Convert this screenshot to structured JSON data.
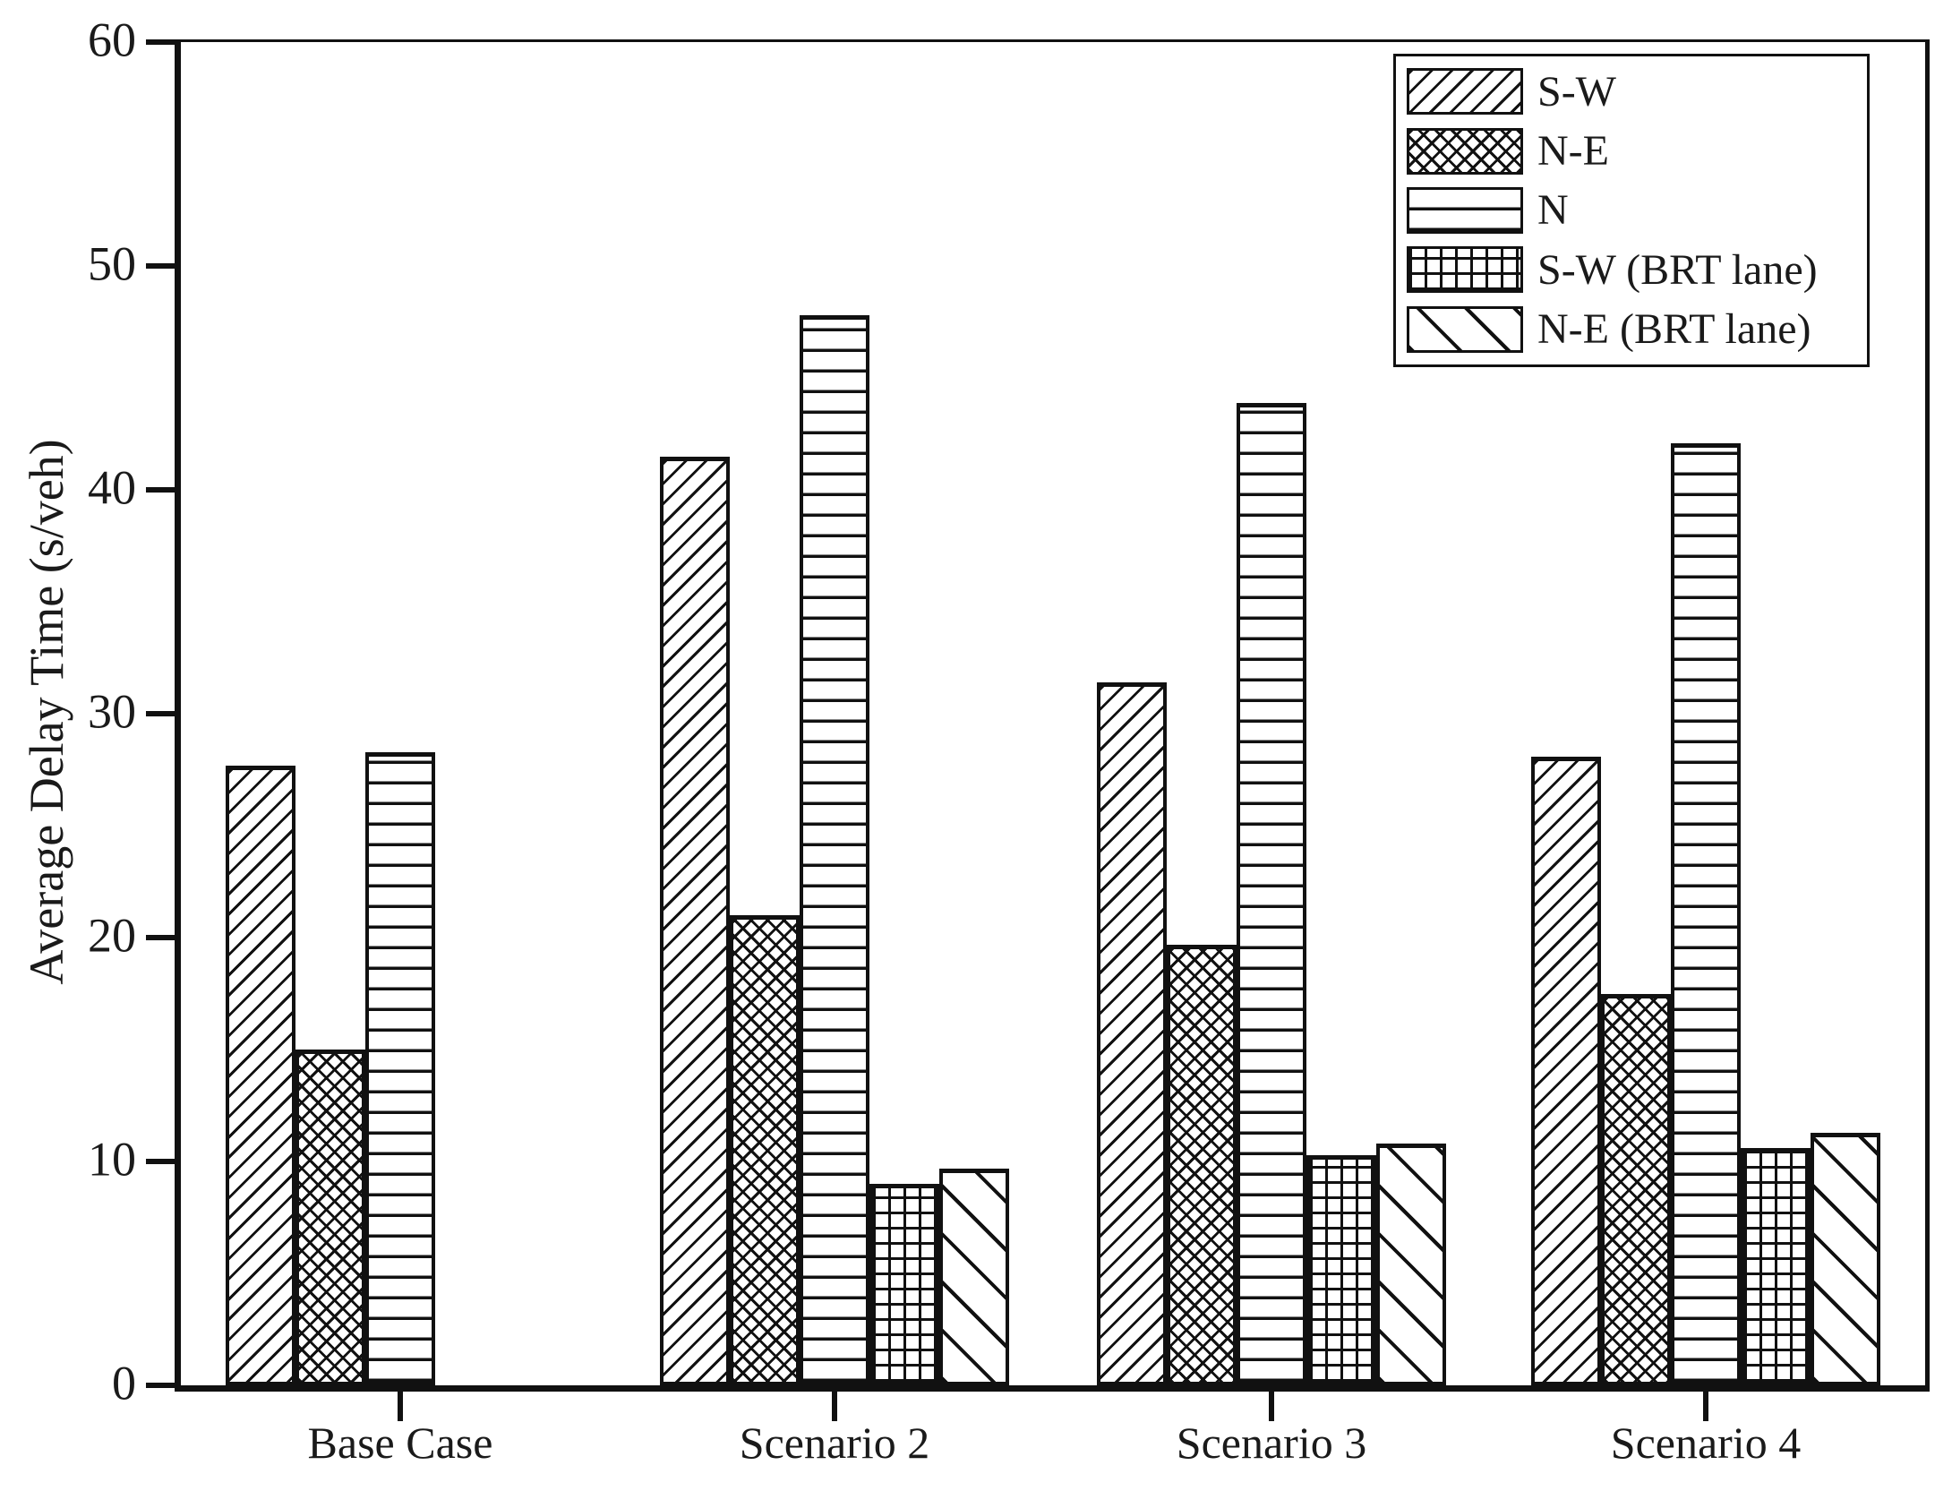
{
  "figure": {
    "background": "#ffffff",
    "line_color": "#111111",
    "text_color": "#1a1a1a"
  },
  "y_axis": {
    "title": "Average Delay Time (s/veh)"
  },
  "legend": {
    "items": [
      {
        "label": "S-W",
        "pattern": "diag-up"
      },
      {
        "label": "N-E",
        "pattern": "crosshatch"
      },
      {
        "label": "N",
        "pattern": "horizontal"
      },
      {
        "label": "S-W (BRT lane)",
        "pattern": "grid"
      },
      {
        "label": "N-E (BRT lane)",
        "pattern": "diag-down"
      }
    ]
  },
  "chart_data": {
    "type": "bar",
    "title": "",
    "xlabel": "",
    "ylabel": "Average Delay Time (s/veh)",
    "ylim": [
      0,
      60
    ],
    "yticks": [
      0,
      10,
      20,
      30,
      40,
      50,
      60
    ],
    "grid": false,
    "legend_position": "top-right",
    "categories": [
      "Base Case",
      "Scenario 2",
      "Scenario 3",
      "Scenario 4"
    ],
    "series": [
      {
        "name": "S-W",
        "pattern": "diag-up",
        "values": [
          27.7,
          41.5,
          31.4,
          28.1
        ]
      },
      {
        "name": "N-E",
        "pattern": "crosshatch",
        "values": [
          15.0,
          21.0,
          19.7,
          17.5
        ]
      },
      {
        "name": "N",
        "pattern": "horizontal",
        "values": [
          28.3,
          47.8,
          43.9,
          42.1
        ]
      },
      {
        "name": "S-W (BRT lane)",
        "pattern": "grid",
        "values": [
          null,
          9.0,
          10.3,
          10.6
        ]
      },
      {
        "name": "N-E (BRT lane)",
        "pattern": "diag-down",
        "values": [
          null,
          9.7,
          10.8,
          11.3
        ]
      }
    ]
  }
}
